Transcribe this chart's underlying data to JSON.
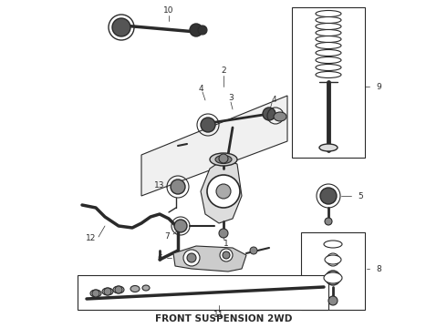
{
  "title": "FRONT SUSPENSION 2WD",
  "background_color": "#ffffff",
  "line_color": "#2a2a2a",
  "title_fontsize": 7.5,
  "label_fontsize": 6.5,
  "figsize": [
    4.9,
    3.6
  ],
  "dpi": 100
}
